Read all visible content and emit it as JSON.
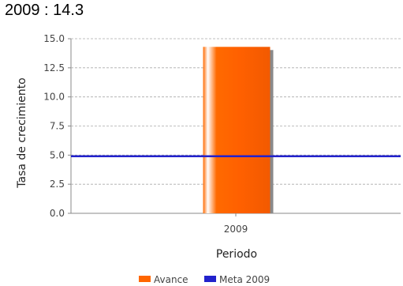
{
  "header": {
    "title": "2009 : 14.3"
  },
  "chart_data": {
    "type": "bar",
    "categories": [
      "2009"
    ],
    "series": [
      {
        "name": "Avance",
        "values": [
          14.3
        ],
        "color": "#ff6600"
      }
    ],
    "target_line": {
      "name": "Meta 2009",
      "value": 4.9,
      "color": "#2222cc"
    },
    "xlabel": "Periodo",
    "ylabel": "Tasa de crecimiento",
    "ylim": [
      0,
      15
    ],
    "yticks": [
      0.0,
      2.5,
      5.0,
      7.5,
      10.0,
      12.5,
      15.0
    ],
    "ytick_labels": [
      "0.0",
      "2.5",
      "5.0",
      "7.5",
      "10.0",
      "12.5",
      "15.0"
    ],
    "grid": true,
    "legend_position": "bottom"
  }
}
